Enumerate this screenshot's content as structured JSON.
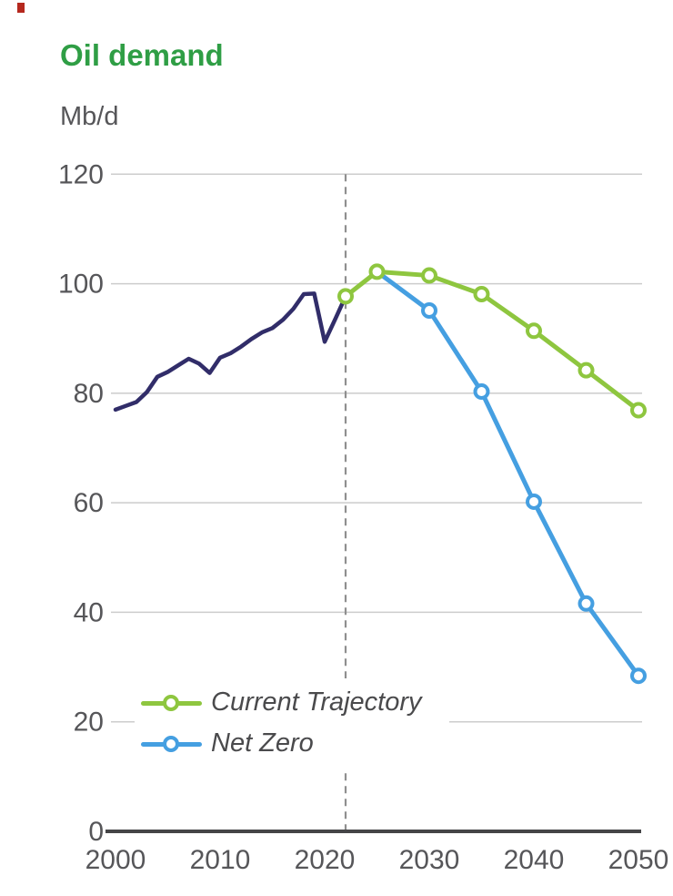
{
  "header": {
    "title": "Oil demand",
    "unit": "Mb/d"
  },
  "colors": {
    "title": "#2f9e45",
    "history_line": "#312d69",
    "current_line": "#8ec63f",
    "netzero_line": "#459fe1",
    "axis_text": "#565659",
    "legend_text": "#4a4a4c",
    "gridline": "#cccccc",
    "axis_line": "#454547",
    "dashed_line": "#8f8f8f",
    "corner_mark": "#b5281e",
    "marker_fill": "#ffffff"
  },
  "legend": {
    "items": [
      {
        "label": "Current Trajectory",
        "color_key": "current_line"
      },
      {
        "label": "Net Zero",
        "color_key": "netzero_line"
      }
    ]
  },
  "chart_data": {
    "type": "line",
    "title": "Oil demand",
    "ylabel": "Mb/d",
    "ylim": [
      0,
      120
    ],
    "yticks": [
      0,
      20,
      40,
      60,
      80,
      100,
      120
    ],
    "xticks": [
      2000,
      2010,
      2020,
      2030,
      2040,
      2050
    ],
    "grid": "horizontal",
    "legend_position": "inside-lower-left",
    "dashed_vline_x": 2022,
    "series": [
      {
        "name": "Historical",
        "color_key": "history_line",
        "markers": false,
        "line_width": 4.5,
        "points": [
          [
            2000,
            77.0
          ],
          [
            2001,
            77.7
          ],
          [
            2002,
            78.4
          ],
          [
            2003,
            80.2
          ],
          [
            2004,
            83.0
          ],
          [
            2005,
            83.9
          ],
          [
            2006,
            85.1
          ],
          [
            2007,
            86.3
          ],
          [
            2008,
            85.4
          ],
          [
            2009,
            83.7
          ],
          [
            2010,
            86.5
          ],
          [
            2011,
            87.3
          ],
          [
            2012,
            88.5
          ],
          [
            2013,
            89.9
          ],
          [
            2014,
            91.1
          ],
          [
            2015,
            91.9
          ],
          [
            2016,
            93.4
          ],
          [
            2017,
            95.4
          ],
          [
            2018,
            98.1
          ],
          [
            2019,
            98.2
          ],
          [
            2020,
            89.4
          ],
          [
            2021,
            93.5
          ],
          [
            2022,
            97.7
          ]
        ]
      },
      {
        "name": "Net Zero",
        "color_key": "netzero_line",
        "markers": true,
        "marker_skip_first": true,
        "line_width": 5,
        "points": [
          [
            2025,
            102.2
          ],
          [
            2030,
            95.1
          ],
          [
            2035,
            80.3
          ],
          [
            2040,
            60.2
          ],
          [
            2045,
            41.6
          ],
          [
            2050,
            28.4
          ]
        ]
      },
      {
        "name": "Current Trajectory",
        "color_key": "current_line",
        "markers": true,
        "marker_skip_first": false,
        "line_width": 5,
        "points": [
          [
            2022,
            97.7
          ],
          [
            2025,
            102.2
          ],
          [
            2030,
            101.5
          ],
          [
            2035,
            98.1
          ],
          [
            2040,
            91.4
          ],
          [
            2045,
            84.2
          ],
          [
            2050,
            76.9
          ]
        ]
      }
    ]
  }
}
